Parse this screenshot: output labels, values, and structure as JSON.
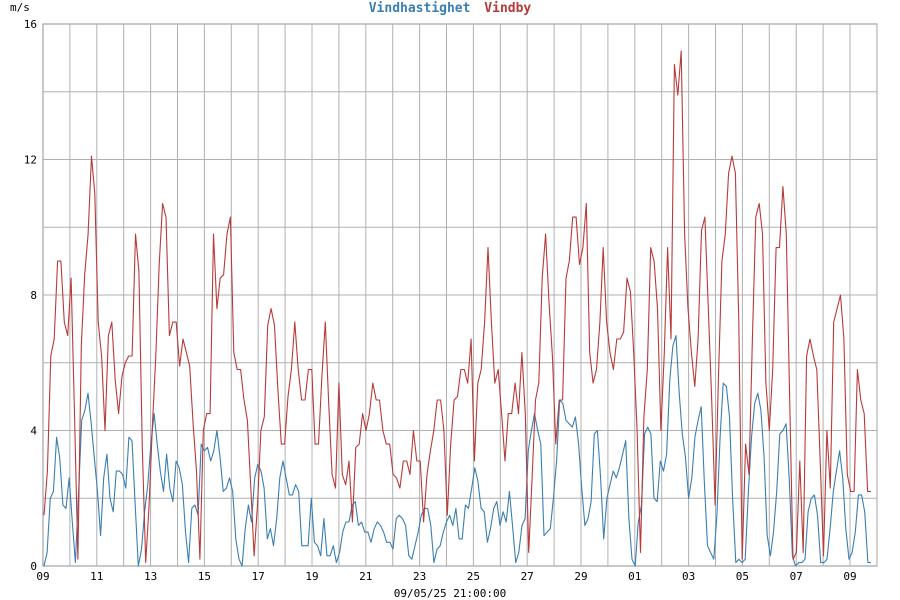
{
  "chart_data": {
    "type": "line",
    "ylabel": "m/s",
    "xlabel": "09/05/25 21:00:00",
    "ylim": [
      0,
      16
    ],
    "y_ticks": [
      "0",
      "4",
      "8",
      "12",
      "16"
    ],
    "x_ticks": [
      "09",
      "11",
      "13",
      "15",
      "17",
      "19",
      "21",
      "23",
      "25",
      "27",
      "29",
      "01",
      "03",
      "05",
      "07",
      "09"
    ],
    "grid": true,
    "legend_placement": "top-center",
    "series": [
      {
        "name": "Vindhastighet",
        "color": "#3a7fb3",
        "values": [
          0.0,
          0.4,
          2.0,
          2.2,
          3.8,
          3.2,
          1.8,
          1.7,
          2.6,
          1.3,
          0.1,
          2.2,
          4.3,
          4.6,
          5.1,
          4.2,
          3.2,
          2.2,
          0.9,
          2.6,
          3.3,
          2.0,
          1.6,
          2.8,
          2.8,
          2.7,
          2.3,
          3.8,
          3.7,
          1.8,
          0.0,
          0.5,
          1.6,
          2.4,
          3.6,
          4.5,
          3.6,
          2.8,
          2.2,
          3.3,
          2.3,
          1.9,
          3.1,
          2.9,
          2.4,
          1.0,
          0.1,
          1.7,
          1.8,
          1.5,
          3.6,
          3.4,
          3.5,
          3.1,
          3.4,
          4.0,
          3.2,
          2.2,
          2.3,
          2.6,
          2.2,
          0.8,
          0.2,
          0.0,
          1.1,
          1.8,
          1.3,
          2.6,
          3.0,
          2.8,
          2.3,
          0.8,
          1.1,
          0.6,
          1.4,
          2.6,
          3.1,
          2.6,
          2.1,
          2.1,
          2.4,
          2.2,
          0.6,
          0.6,
          0.6,
          2.0,
          0.7,
          0.6,
          0.3,
          1.4,
          0.3,
          0.3,
          0.6,
          0.1,
          0.4,
          1.0,
          1.3,
          1.3,
          1.8,
          1.9,
          1.2,
          1.3,
          1.0,
          1.0,
          0.7,
          1.1,
          1.3,
          1.2,
          1.0,
          0.7,
          0.7,
          0.5,
          1.4,
          1.5,
          1.4,
          1.2,
          0.3,
          0.2,
          0.6,
          1.0,
          1.5,
          1.7,
          1.7,
          1.2,
          0.1,
          0.5,
          0.6,
          1.0,
          1.3,
          1.5,
          1.2,
          1.7,
          0.8,
          0.8,
          1.8,
          1.7,
          2.3,
          2.9,
          2.5,
          1.7,
          1.6,
          0.7,
          1.1,
          1.7,
          1.9,
          1.2,
          1.6,
          1.3,
          2.2,
          1.2,
          0.1,
          0.4,
          1.2,
          1.4,
          3.4,
          4.0,
          4.5,
          4.0,
          3.6,
          0.9,
          1.0,
          1.1,
          2.0,
          3.1,
          4.9,
          4.8,
          4.3,
          4.2,
          4.1,
          4.4,
          3.6,
          2.3,
          1.2,
          1.4,
          1.9,
          3.9,
          4.0,
          2.6,
          0.8,
          2.0,
          2.4,
          2.8,
          2.6,
          2.9,
          3.3,
          3.7,
          1.4,
          0.2,
          0.0,
          1.3,
          1.8,
          3.9,
          4.1,
          3.9,
          2.0,
          1.9,
          3.1,
          2.8,
          3.3,
          5.5,
          6.5,
          6.8,
          5.1,
          3.9,
          3.2,
          2.0,
          2.6,
          3.8,
          4.3,
          4.7,
          2.5,
          0.6,
          0.4,
          0.2,
          1.5,
          3.8,
          5.4,
          5.3,
          4.4,
          2.0,
          0.1,
          0.2,
          0.1,
          0.2,
          2.2,
          3.8,
          4.8,
          5.1,
          4.6,
          3.2,
          0.9,
          0.3,
          1.0,
          2.2,
          3.9,
          4.0,
          4.2,
          2.6,
          0.3,
          0.0,
          0.1,
          0.1,
          0.2,
          1.6,
          2.0,
          2.1,
          1.5,
          0.1,
          0.1,
          0.2,
          1.1,
          2.2,
          2.8,
          3.4,
          2.6,
          1.1,
          0.2,
          0.4,
          1.0,
          2.1,
          2.1,
          1.6,
          0.1,
          0.1
        ]
      },
      {
        "name": "Vindby",
        "color": "#b83a3a",
        "values": [
          1.5,
          2.8,
          6.2,
          6.7,
          9.0,
          9.0,
          7.2,
          6.8,
          8.5,
          4.5,
          0.2,
          6.5,
          8.6,
          9.8,
          12.1,
          11.0,
          7.2,
          6.2,
          4.0,
          6.8,
          7.2,
          5.5,
          4.5,
          5.6,
          6.0,
          6.2,
          6.2,
          9.8,
          8.7,
          3.5,
          0.1,
          1.8,
          4.2,
          6.2,
          8.9,
          10.7,
          10.3,
          6.8,
          7.2,
          7.2,
          5.9,
          6.7,
          6.3,
          5.9,
          4.2,
          2.8,
          0.2,
          4.0,
          4.5,
          4.5,
          9.8,
          7.6,
          8.5,
          8.6,
          9.8,
          10.3,
          6.3,
          5.8,
          5.8,
          4.9,
          4.3,
          2.3,
          0.3,
          1.8,
          4.0,
          4.4,
          7.1,
          7.6,
          7.1,
          5.2,
          3.6,
          3.6,
          5.0,
          5.8,
          7.2,
          5.8,
          4.9,
          4.9,
          5.8,
          5.8,
          3.6,
          3.6,
          5.6,
          7.2,
          4.8,
          2.7,
          2.3,
          5.4,
          2.7,
          2.4,
          3.1,
          1.3,
          3.5,
          3.6,
          4.5,
          4.0,
          4.5,
          5.4,
          4.9,
          4.9,
          4.0,
          3.6,
          3.6,
          2.7,
          2.6,
          2.3,
          3.1,
          3.1,
          2.7,
          4.0,
          3.1,
          3.1,
          1.3,
          2.7,
          3.4,
          4.0,
          4.9,
          4.9,
          4.0,
          1.5,
          3.6,
          4.9,
          5.0,
          5.8,
          5.8,
          5.4,
          6.7,
          3.1,
          5.4,
          5.8,
          7.2,
          9.4,
          7.2,
          5.4,
          5.8,
          4.5,
          3.1,
          4.5,
          4.5,
          5.4,
          4.5,
          6.3,
          4.5,
          0.4,
          2.6,
          4.9,
          5.4,
          8.5,
          9.8,
          7.8,
          6.2,
          3.6,
          4.9,
          4.9,
          8.5,
          9.0,
          10.3,
          10.3,
          8.9,
          9.4,
          10.7,
          6.3,
          5.4,
          5.8,
          7.2,
          9.4,
          7.2,
          6.3,
          5.8,
          6.7,
          6.7,
          6.9,
          8.5,
          8.1,
          6.3,
          4.0,
          0.4,
          4.4,
          5.8,
          9.4,
          9.0,
          7.6,
          4.0,
          6.3,
          9.4,
          6.7,
          14.8,
          13.9,
          15.2,
          9.8,
          7.6,
          6.3,
          5.3,
          6.7,
          9.9,
          10.3,
          7.6,
          4.9,
          1.8,
          5.6,
          9.0,
          9.8,
          11.6,
          12.1,
          11.6,
          7.2,
          0.2,
          3.6,
          2.7,
          6.7,
          10.3,
          10.7,
          9.8,
          5.4,
          4.0,
          5.8,
          9.4,
          9.4,
          11.2,
          9.8,
          4.9,
          0.2,
          0.4,
          3.1,
          0.4,
          6.2,
          6.7,
          6.2,
          5.8,
          3.1,
          0.3,
          4.0,
          2.3,
          7.2,
          7.6,
          8.0,
          6.7,
          2.7,
          2.2,
          2.2,
          5.8,
          4.9,
          4.5,
          2.2,
          2.2
        ]
      }
    ]
  }
}
